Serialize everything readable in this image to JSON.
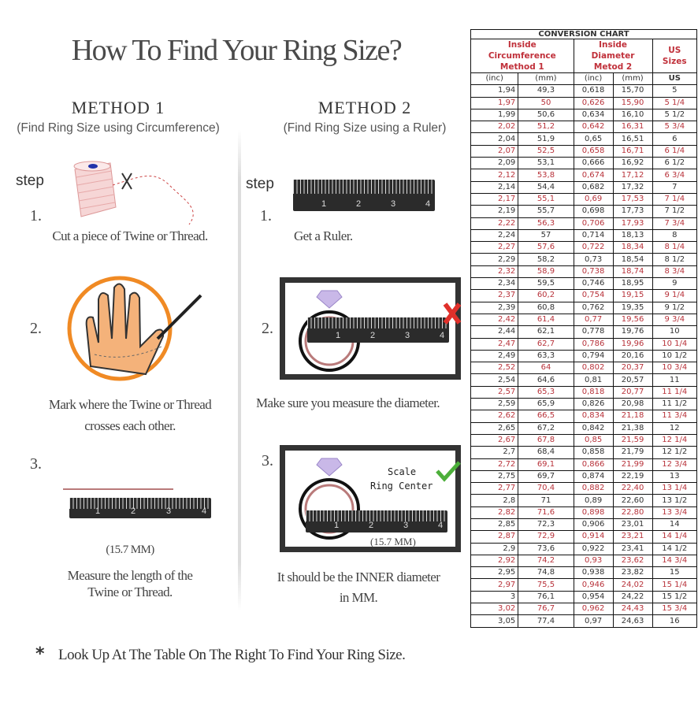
{
  "title": "How To Find Your Ring Size?",
  "method1": {
    "heading": "METHOD 1",
    "subtitle": "(Find Ring Size using Circumference)",
    "step_label": "step",
    "steps": [
      {
        "num": "1.",
        "text": "Cut a piece of Twine or Thread."
      },
      {
        "num": "2.",
        "text": [
          "Mark where the Twine or Thread",
          "crosses each other."
        ]
      },
      {
        "num": "3.",
        "measure": "(15.7 MM)",
        "text": [
          "Measure the length of the",
          "Twine or Thread."
        ]
      }
    ]
  },
  "method2": {
    "heading": "METHOD 2",
    "subtitle": "(Find Ring Size using a Ruler)",
    "step_label": "step",
    "steps": [
      {
        "num": "1.",
        "text": "Get a Ruler."
      },
      {
        "num": "2.",
        "text": "Make sure you measure the diameter."
      },
      {
        "num": "3.",
        "scale_label": "Scale",
        "ring_center_label": "Ring Center",
        "measure": "(15.7 MM)",
        "text": [
          "It should be the INNER diameter",
          "in MM."
        ]
      }
    ]
  },
  "ruler_numbers": [
    "1",
    "2",
    "3",
    "4"
  ],
  "footer": {
    "bullet": "*",
    "text": "Look Up At The Table On The Right To Find Your Ring Size."
  },
  "colors": {
    "accent_red": "#b8323a",
    "ring_orange": "#f08a24",
    "check_green": "#4caf3a",
    "cross_red": "#e0302a"
  },
  "table": {
    "title": "CONVERSION CHART",
    "group1": [
      "Inside Circumference",
      "Method 1"
    ],
    "group2": [
      "Inside Diameter",
      "Metod 2"
    ],
    "group3": "US Sizes",
    "units": [
      "(inc)",
      "(mm)",
      "(inc)",
      "(mm)",
      "US"
    ],
    "rows": [
      [
        "1,94",
        "49,3",
        "0,618",
        "15,70",
        "5"
      ],
      [
        "1,97",
        "50",
        "0,626",
        "15,90",
        "5 1/4"
      ],
      [
        "1,99",
        "50,6",
        "0,634",
        "16,10",
        "5 1/2"
      ],
      [
        "2,02",
        "51,2",
        "0,642",
        "16,31",
        "5 3/4"
      ],
      [
        "2,04",
        "51,9",
        "0,65",
        "16,51",
        "6"
      ],
      [
        "2,07",
        "52,5",
        "0,658",
        "16,71",
        "6 1/4"
      ],
      [
        "2,09",
        "53,1",
        "0,666",
        "16,92",
        "6 1/2"
      ],
      [
        "2,12",
        "53,8",
        "0,674",
        "17,12",
        "6 3/4"
      ],
      [
        "2,14",
        "54,4",
        "0,682",
        "17,32",
        "7"
      ],
      [
        "2,17",
        "55,1",
        "0,69",
        "17,53",
        "7 1/4"
      ],
      [
        "2,19",
        "55,7",
        "0,698",
        "17,73",
        "7 1/2"
      ],
      [
        "2,22",
        "56,3",
        "0,706",
        "17,93",
        "7 3/4"
      ],
      [
        "2,24",
        "57",
        "0,714",
        "18,13",
        "8"
      ],
      [
        "2,27",
        "57,6",
        "0,722",
        "18,34",
        "8 1/4"
      ],
      [
        "2,29",
        "58,2",
        "0,73",
        "18,54",
        "8 1/2"
      ],
      [
        "2,32",
        "58,9",
        "0,738",
        "18,74",
        "8 3/4"
      ],
      [
        "2,34",
        "59,5",
        "0,746",
        "18,95",
        "9"
      ],
      [
        "2,37",
        "60,2",
        "0,754",
        "19,15",
        "9 1/4"
      ],
      [
        "2,39",
        "60,8",
        "0,762",
        "19,35",
        "9 1/2"
      ],
      [
        "2,42",
        "61,4",
        "0,77",
        "19,56",
        "9 3/4"
      ],
      [
        "2,44",
        "62,1",
        "0,778",
        "19,76",
        "10"
      ],
      [
        "2,47",
        "62,7",
        "0,786",
        "19,96",
        "10 1/4"
      ],
      [
        "2,49",
        "63,3",
        "0,794",
        "20,16",
        "10 1/2"
      ],
      [
        "2,52",
        "64",
        "0,802",
        "20,37",
        "10 3/4"
      ],
      [
        "2,54",
        "64,6",
        "0,81",
        "20,57",
        "11"
      ],
      [
        "2,57",
        "65,3",
        "0,818",
        "20,77",
        "11 1/4"
      ],
      [
        "2,59",
        "65,9",
        "0,826",
        "20,98",
        "11 1/2"
      ],
      [
        "2,62",
        "66,5",
        "0,834",
        "21,18",
        "11 3/4"
      ],
      [
        "2,65",
        "67,2",
        "0,842",
        "21,38",
        "12"
      ],
      [
        "2,67",
        "67,8",
        "0,85",
        "21,59",
        "12 1/4"
      ],
      [
        "2,7",
        "68,4",
        "0,858",
        "21,79",
        "12 1/2"
      ],
      [
        "2,72",
        "69,1",
        "0,866",
        "21,99",
        "12 3/4"
      ],
      [
        "2,75",
        "69,7",
        "0,874",
        "22,19",
        "13"
      ],
      [
        "2,77",
        "70,4",
        "0,882",
        "22,40",
        "13 1/4"
      ],
      [
        "2,8",
        "71",
        "0,89",
        "22,60",
        "13 1/2"
      ],
      [
        "2,82",
        "71,6",
        "0,898",
        "22,80",
        "13 3/4"
      ],
      [
        "2,85",
        "72,3",
        "0,906",
        "23,01",
        "14"
      ],
      [
        "2,87",
        "72,9",
        "0,914",
        "23,21",
        "14 1/4"
      ],
      [
        "2,9",
        "73,6",
        "0,922",
        "23,41",
        "14 1/2"
      ],
      [
        "2,92",
        "74,2",
        "0,93",
        "23,62",
        "14 3/4"
      ],
      [
        "2,95",
        "74,8",
        "0,938",
        "23,82",
        "15"
      ],
      [
        "2,97",
        "75,5",
        "0,946",
        "24,02",
        "15 1/4"
      ],
      [
        "3",
        "76,1",
        "0,954",
        "24,22",
        "15 1/2"
      ],
      [
        "3,02",
        "76,7",
        "0,962",
        "24,43",
        "15 3/4"
      ],
      [
        "3,05",
        "77,4",
        "0,97",
        "24,63",
        "16"
      ]
    ]
  }
}
